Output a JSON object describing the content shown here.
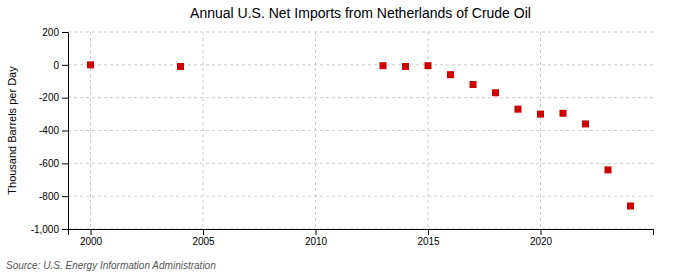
{
  "chart_data": {
    "type": "scatter",
    "title": "Annual U.S. Net Imports from Netherlands of Crude Oil",
    "ylabel": "Thousand Barrels per Day",
    "annotation": "Source: U.S. Energy Information Administration",
    "x": [
      2000,
      2004,
      2013,
      2014,
      2015,
      2016,
      2017,
      2018,
      2019,
      2020,
      2021,
      2022,
      2023,
      2024
    ],
    "values": [
      0,
      -10,
      -5,
      -10,
      -5,
      -60,
      -120,
      -170,
      -270,
      -300,
      -295,
      -360,
      -640,
      -860
    ],
    "color": "#cc0000",
    "marker": "square",
    "xlim": [
      1999,
      2025
    ],
    "ylim": [
      -1000,
      200
    ],
    "xticks": [
      2000,
      2005,
      2010,
      2015,
      2020
    ],
    "yticks": [
      200,
      0,
      -200,
      -400,
      -600,
      -800,
      {
        "value": -1000,
        "label": "-1,000"
      }
    ],
    "grid": true
  }
}
